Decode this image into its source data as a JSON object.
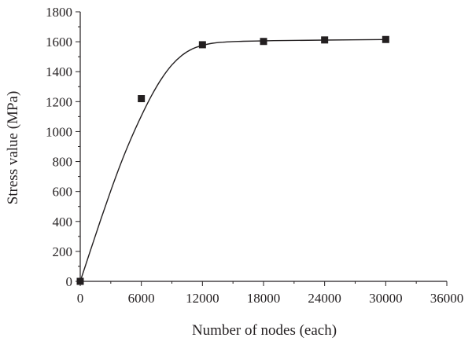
{
  "chart_data": {
    "type": "scatter",
    "title": "",
    "xlabel": "Number of nodes (each)",
    "ylabel": "Stress value (MPa)",
    "xlim": [
      0,
      36000
    ],
    "ylim": [
      0,
      1800
    ],
    "x_ticks": [
      0,
      6000,
      12000,
      18000,
      24000,
      30000,
      36000
    ],
    "y_ticks": [
      0,
      200,
      400,
      600,
      800,
      1000,
      1200,
      1400,
      1600,
      1800
    ],
    "x_tick_labels": [
      "0",
      "6000",
      "12000",
      "18000",
      "24000",
      "30000",
      "36000"
    ],
    "y_tick_labels": [
      "0",
      "200",
      "400",
      "600",
      "800",
      "1000",
      "1200",
      "1400",
      "1600",
      "1800"
    ],
    "grid": false,
    "legend": "none",
    "series": [
      {
        "marker": "square",
        "x": [
          0,
          6000,
          12000,
          18000,
          24000,
          30000
        ],
        "y": [
          0,
          1220,
          1580,
          1602,
          1612,
          1615
        ]
      }
    ],
    "fit_curve": {
      "x": [
        0,
        1000,
        2000,
        3000,
        4000,
        5000,
        6000,
        7000,
        8000,
        9000,
        10000,
        11000,
        12000,
        13000,
        14000,
        15000,
        16000,
        18000,
        20000,
        24000,
        30000
      ],
      "y": [
        0,
        205,
        410,
        605,
        790,
        955,
        1105,
        1240,
        1355,
        1445,
        1510,
        1552,
        1576,
        1590,
        1597,
        1601,
        1603,
        1606,
        1608,
        1611,
        1615
      ]
    },
    "colors": {
      "ink": "#231f20",
      "background": "#ffffff"
    }
  }
}
